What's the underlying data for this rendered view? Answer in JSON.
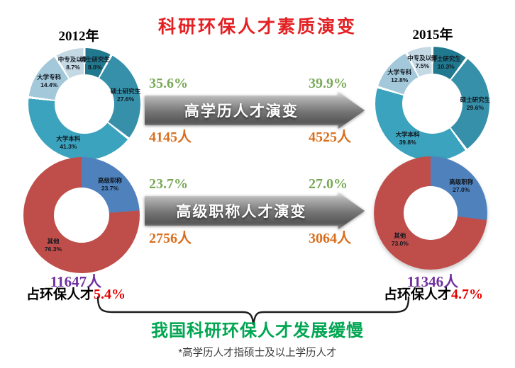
{
  "title": "科研环保人才素质演变",
  "year_left": "2012年",
  "year_right": "2015年",
  "flows": [
    {
      "label": "高学历人才演变",
      "left_pct": "35.6%",
      "right_pct": "39.9%",
      "left_count": "4145人",
      "right_count": "4525人"
    },
    {
      "label": "高级职称人才演变",
      "left_pct": "23.7%",
      "right_pct": "27.0%",
      "left_count": "2756人",
      "right_count": "3064人"
    }
  ],
  "totals_left": {
    "count": "11647人",
    "share_label": "占环保人才",
    "share_value": "5.4%"
  },
  "totals_right": {
    "count": "11346人",
    "share_label": "占环保人才",
    "share_value": "4.7%"
  },
  "conclusion": "我国科研环保人才发展缓慢",
  "footnote": "*高学历人才指硕士及以上学历人才",
  "colors": {
    "title_red": "#e32124",
    "green_pct": "#79a958",
    "orange_count": "#d96f1e",
    "purple_total": "#7030a0",
    "red_share": "#e60000",
    "conclusion_green": "#00a651",
    "edu_palette": [
      "#21798f",
      "#3690a9",
      "#3ba3bd",
      "#a3c8da",
      "#c5d9e5"
    ],
    "rank_palette": [
      "#4f81bd",
      "#bf4e4a"
    ]
  },
  "chart_data": [
    {
      "type": "pie",
      "name": "education-structure-2012",
      "year": "2012年",
      "labels": [
        "博士研究生",
        "硕士研究生",
        "大学本科",
        "大学专科",
        "中专及以下"
      ],
      "values": [
        8.0,
        27.6,
        41.3,
        14.4,
        8.7
      ],
      "unit": "%",
      "palette": "edu_palette",
      "donut_hole": 0.53,
      "slice_separators": true,
      "legend_position": "inside"
    },
    {
      "type": "pie",
      "name": "education-structure-2015",
      "year": "2015年",
      "labels": [
        "博士研究生",
        "硕士研究生",
        "大学本科",
        "大学专科",
        "中专及以下"
      ],
      "values": [
        10.3,
        29.6,
        39.8,
        12.8,
        7.5
      ],
      "unit": "%",
      "palette": "edu_palette",
      "donut_hole": 0.53,
      "slice_separators": true,
      "legend_position": "inside"
    },
    {
      "type": "pie",
      "name": "senior-title-2012",
      "year": "2012年",
      "labels": [
        "高级职称",
        "其他"
      ],
      "values": [
        23.7,
        76.3
      ],
      "unit": "%",
      "palette": "rank_palette",
      "donut_hole": 0.48,
      "slice_separators": false,
      "legend_position": "inside"
    },
    {
      "type": "pie",
      "name": "senior-title-2015",
      "year": "2015年",
      "labels": [
        "高级职称",
        "其他"
      ],
      "values": [
        27.0,
        73.0
      ],
      "unit": "%",
      "palette": "rank_palette",
      "donut_hole": 0.48,
      "slice_separators": false,
      "legend_position": "inside"
    }
  ]
}
